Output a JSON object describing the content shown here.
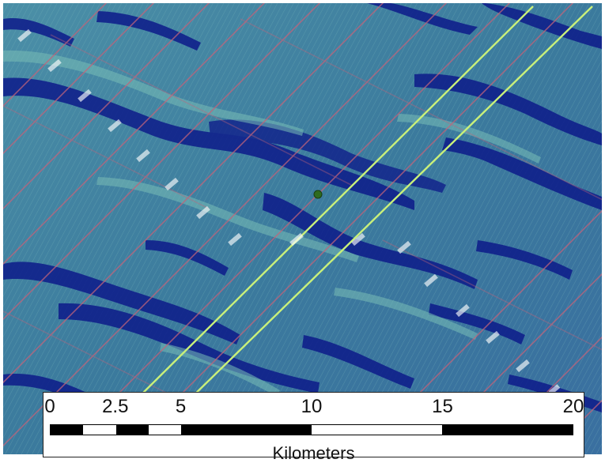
{
  "map": {
    "background_base": "#3f7f9e",
    "dark_ridge_color": "#0d1b8a",
    "light_ridge_color": "#6fb3b0",
    "grid_color": "#c2637a",
    "survey_line_color": "#c9f07a",
    "center_marker_color": "#2f6b1f"
  },
  "scalebar": {
    "ticks": [
      "0",
      "2.5",
      "5",
      "10",
      "15",
      "20"
    ],
    "tick_values": [
      0,
      2.5,
      5,
      10,
      15,
      20
    ],
    "max_value": 20,
    "unit": "Kilometers"
  }
}
